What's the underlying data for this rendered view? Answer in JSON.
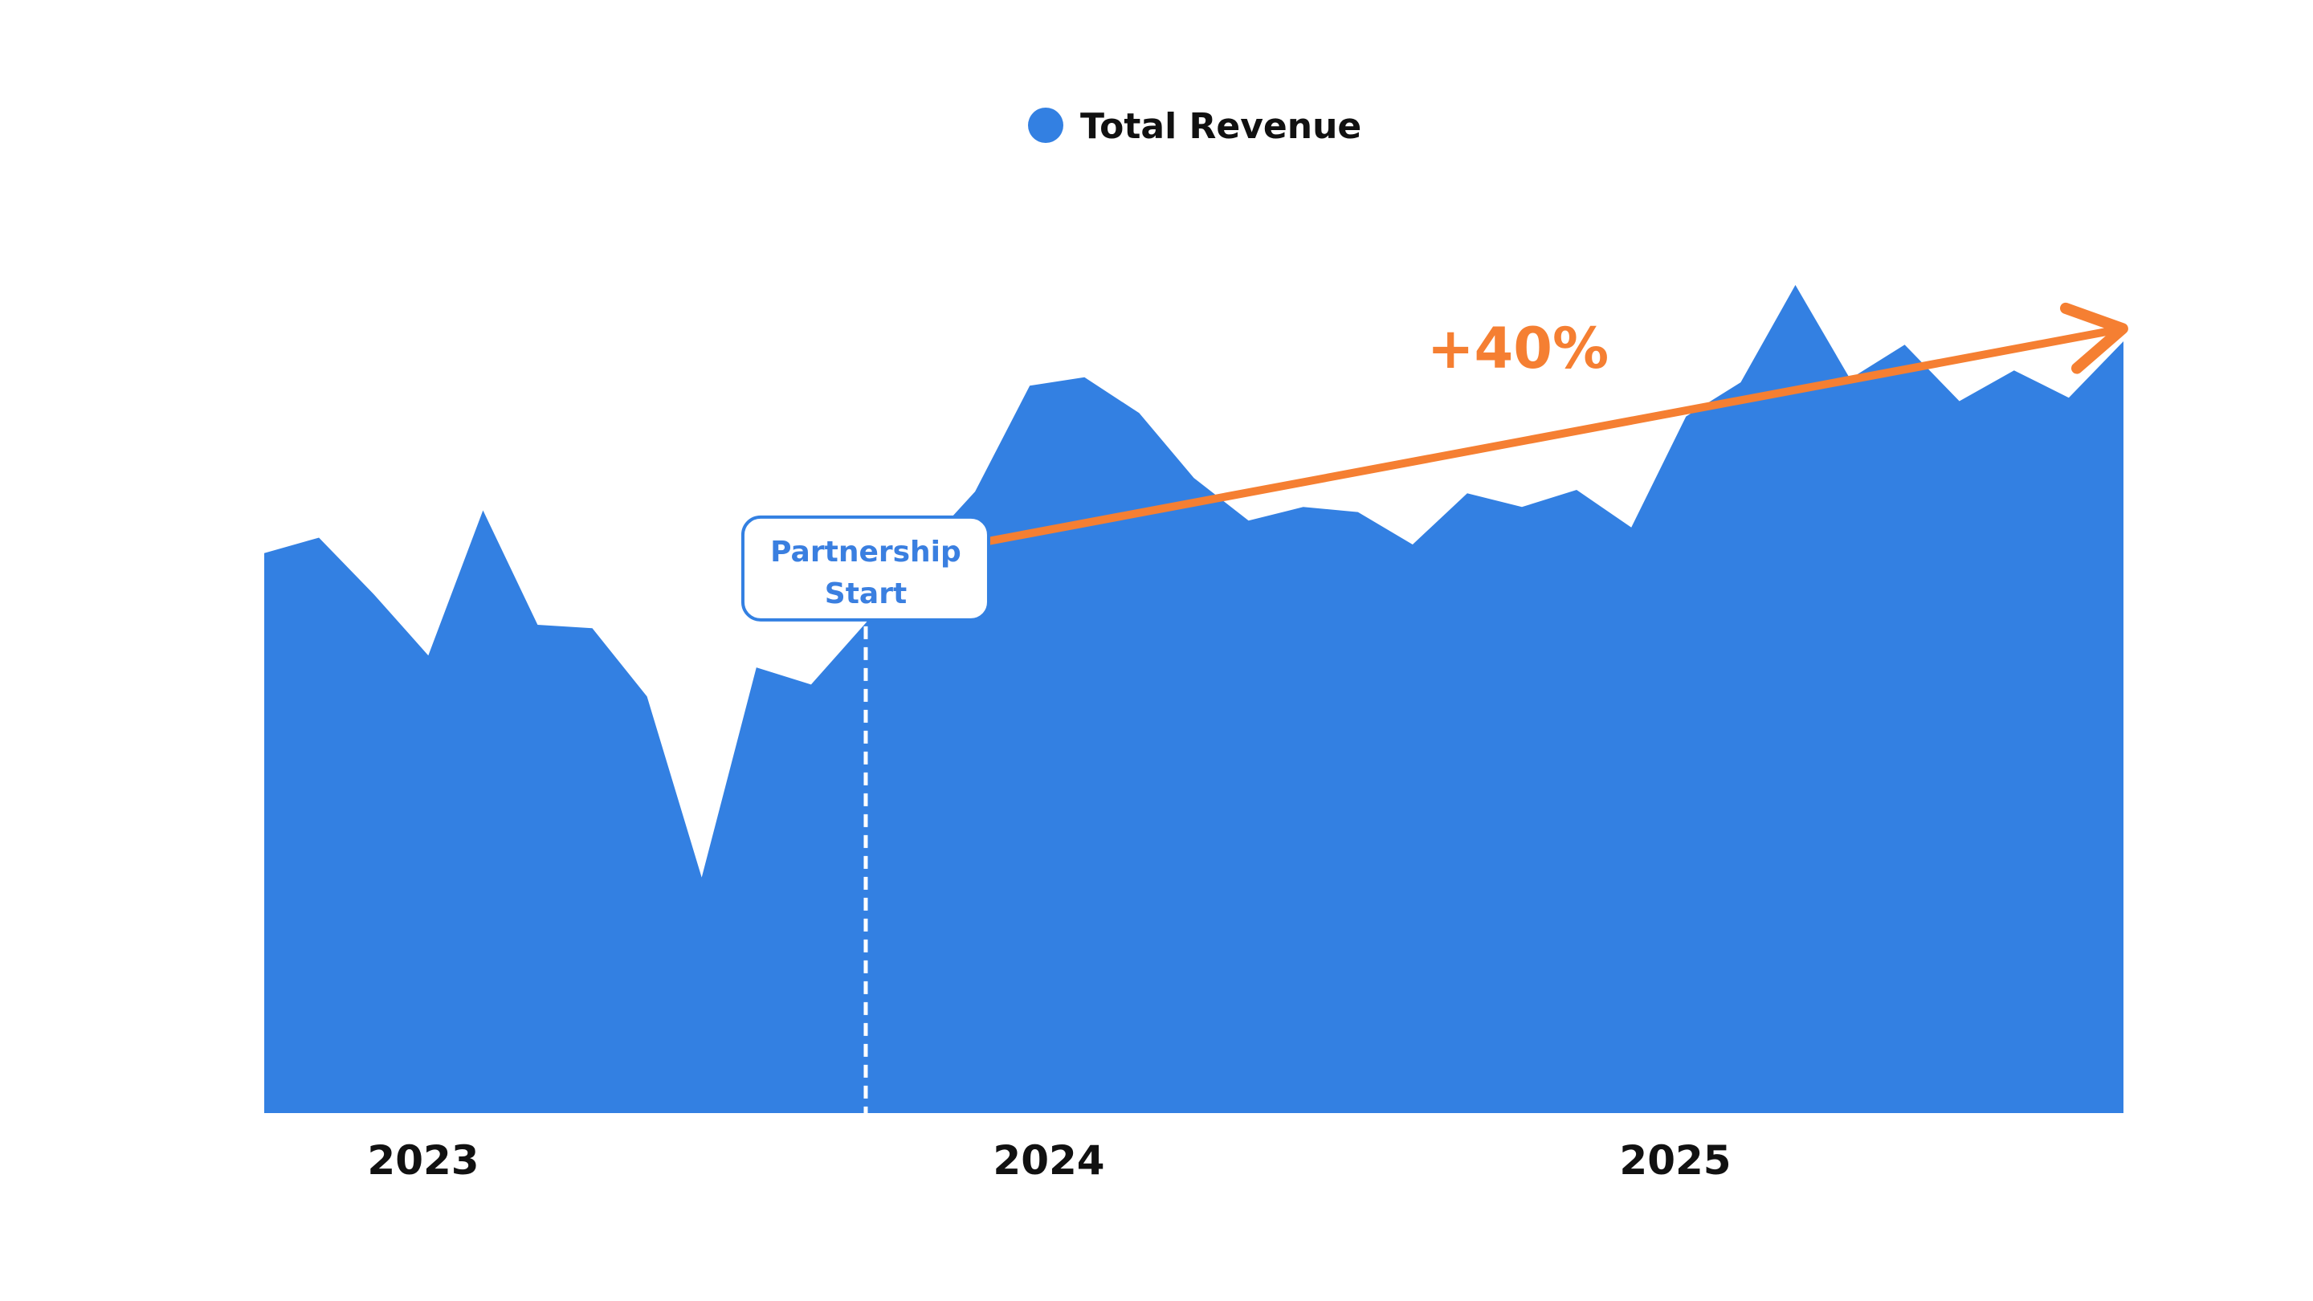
{
  "colors": {
    "area": "#3380e2",
    "trend": "#f57f32",
    "callout_border": "#3380e2",
    "callout_text": "#3a7fe0",
    "marker_line": "#ffffff"
  },
  "chart_data": {
    "type": "area",
    "title": "",
    "xlabel": "",
    "ylabel": "",
    "grid": false,
    "legend_position": "top-center",
    "legend": [
      {
        "label": "Total Revenue",
        "color": "#3380e2"
      }
    ],
    "series": [
      {
        "name": "Total Revenue",
        "x": [
          "2023-01",
          "2023-02",
          "2023-03",
          "2023-04",
          "2023-05",
          "2023-06",
          "2023-07",
          "2023-08",
          "2023-09",
          "2023-10",
          "2023-11",
          "2023-12",
          "2024-01",
          "2024-02",
          "2024-03",
          "2024-04",
          "2024-05",
          "2024-06",
          "2024-07",
          "2024-08",
          "2024-09",
          "2024-10",
          "2024-11",
          "2024-12",
          "2025-01",
          "2025-02",
          "2025-03",
          "2025-04",
          "2025-05",
          "2025-06",
          "2025-07",
          "2025-08",
          "2025-09",
          "2025-10",
          "2025-11"
        ],
        "values": [
          65.6,
          67.4,
          60.8,
          53.6,
          70.6,
          57.2,
          56.8,
          48.8,
          27.6,
          52.2,
          50.2,
          57.4,
          65.8,
          72.8,
          85.2,
          86.2,
          82.0,
          74.4,
          69.4,
          71.0,
          70.4,
          66.6,
          72.6,
          71.0,
          73.0,
          68.6,
          81.6,
          85.6,
          97.0,
          86.0,
          90.0,
          83.4,
          87.0,
          83.8,
          90.4
        ]
      }
    ],
    "x_ticks": [
      "2023",
      "2024",
      "2025"
    ],
    "ylim": [
      0,
      110
    ],
    "annotations": [
      {
        "type": "vertical-marker",
        "x": "2023-12",
        "label_line1": "Partnership",
        "label_line2": "Start"
      },
      {
        "type": "trend-arrow",
        "from": {
          "x": "2024-01",
          "y": 67.0
        },
        "to": {
          "x": "2025-11",
          "y": 91.8
        },
        "label": "+40%"
      }
    ]
  }
}
